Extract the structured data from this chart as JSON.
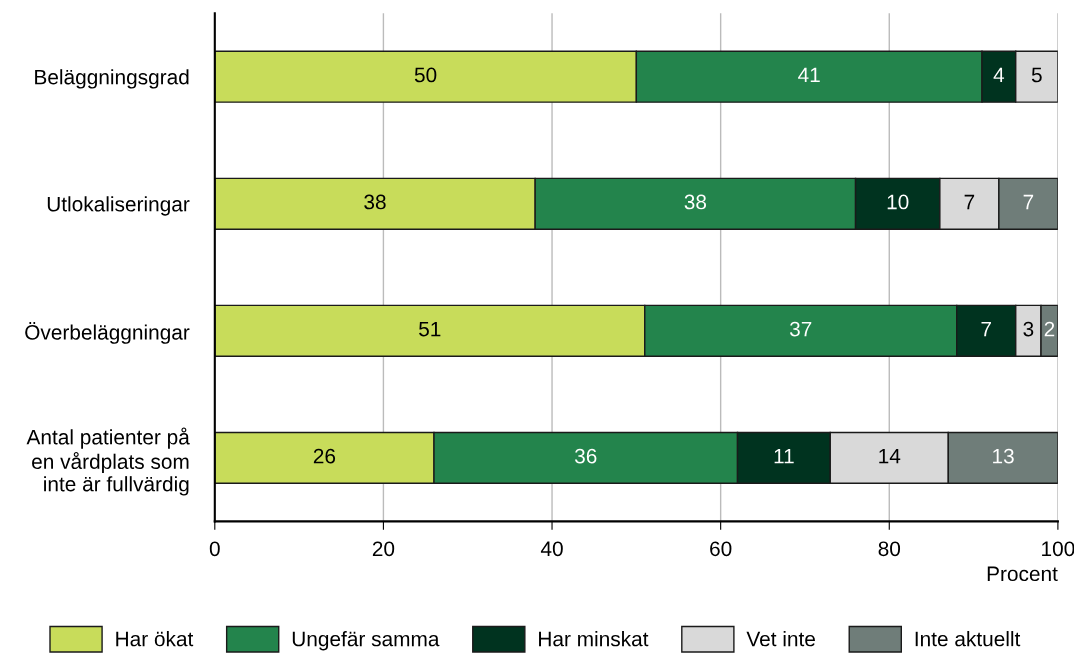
{
  "chart_data": {
    "type": "bar",
    "orientation": "horizontal",
    "stacked": true,
    "xlabel": "Procent",
    "categories": [
      "Beläggningsgrad",
      "Utlokaliseringar",
      "Överbeläggningar",
      "Antal patienter på\nen vårdplats som\ninte är fullvärdig"
    ],
    "series": [
      {
        "name": "Har ökat",
        "color": "#c8dc5a",
        "values": [
          50,
          38,
          51,
          26
        ]
      },
      {
        "name": "Ungefär samma",
        "color": "#23844c",
        "values": [
          41,
          38,
          37,
          36
        ]
      },
      {
        "name": "Har minskat",
        "color": "#00331f",
        "values": [
          4,
          10,
          7,
          11
        ]
      },
      {
        "name": "Vet inte",
        "color": "#d9d9d9",
        "values": [
          5,
          7,
          3,
          14
        ]
      },
      {
        "name": "Inte aktuellt",
        "color": "#6f7d79",
        "values": [
          null,
          7,
          2,
          13
        ]
      }
    ],
    "xlim": [
      0,
      100
    ],
    "xticks": [
      0,
      20,
      40,
      60,
      80,
      100
    ],
    "grid": "x",
    "data_labels": true,
    "legend": "bottom"
  }
}
